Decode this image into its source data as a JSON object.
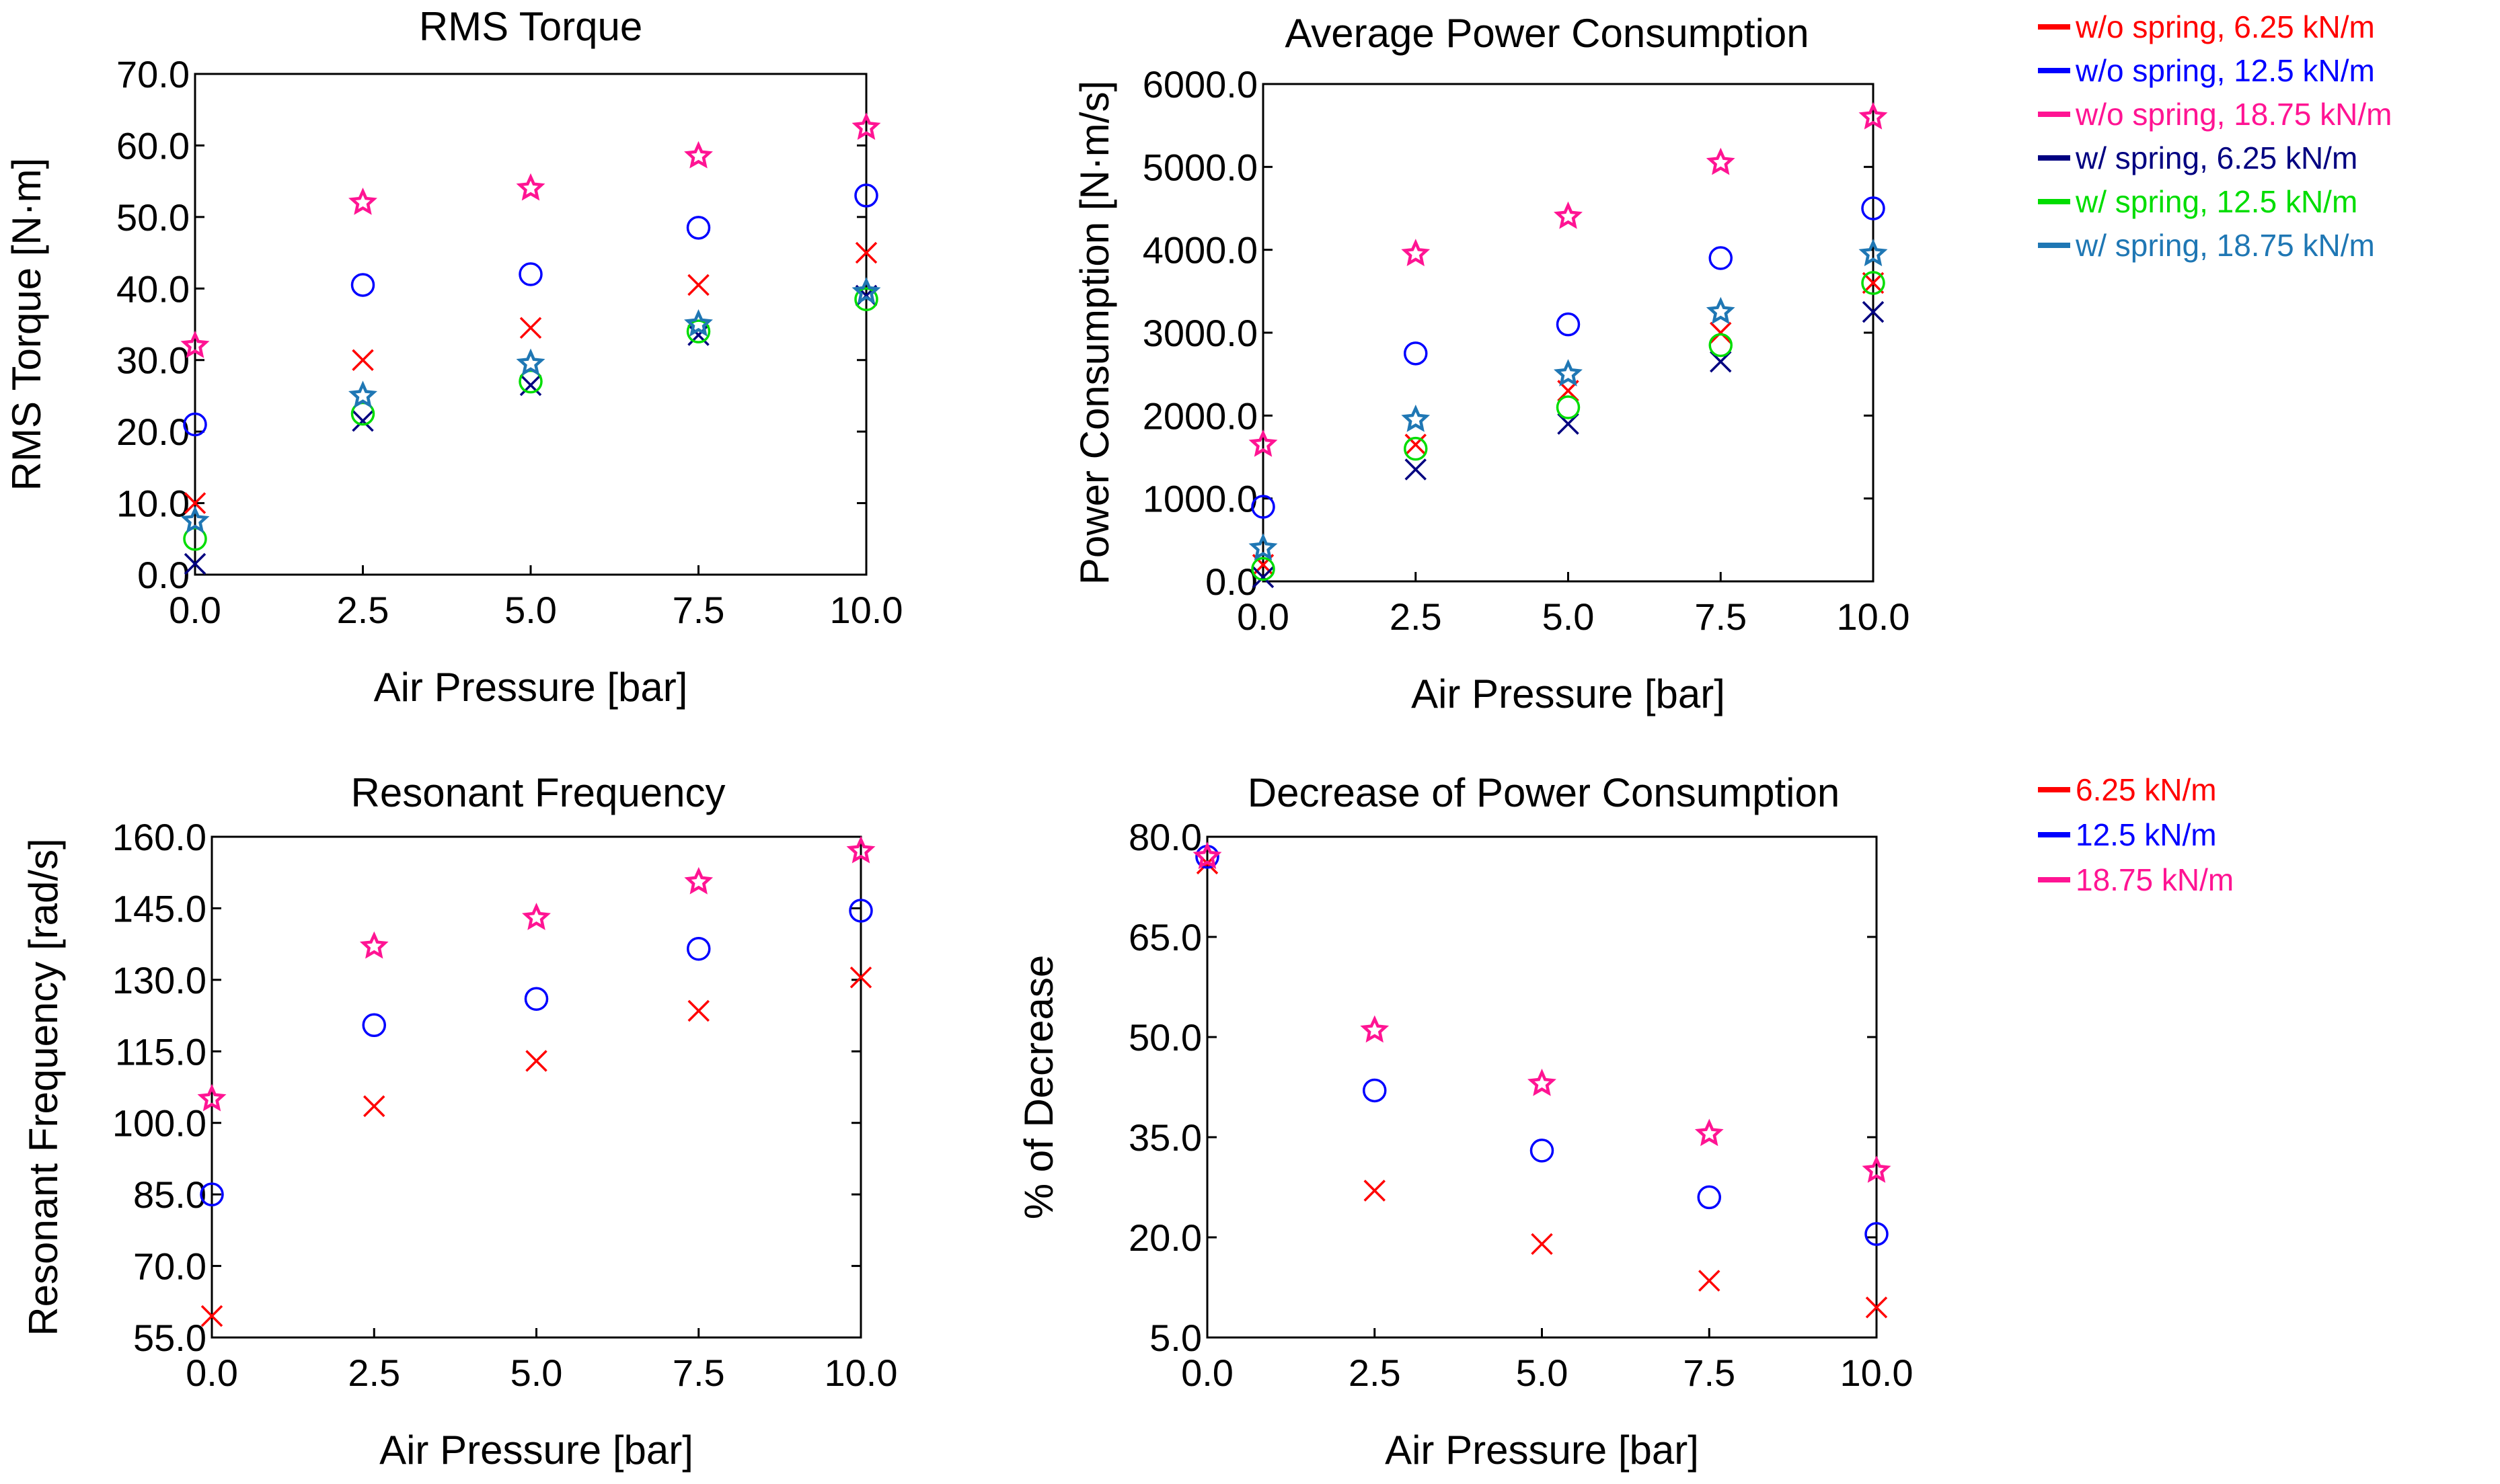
{
  "chart_data": [
    {
      "type": "scatter",
      "title": "RMS Torque",
      "xlabel": "Air Pressure [bar]",
      "ylabel": "RMS Torque [N·m]",
      "xlim": [
        0,
        10
      ],
      "ylim": [
        0,
        70
      ],
      "xticks": [
        "0.0",
        "2.5",
        "5.0",
        "7.5",
        "10.0"
      ],
      "yticks": [
        "0.0",
        "10.0",
        "20.0",
        "30.0",
        "40.0",
        "50.0",
        "60.0",
        "70.0"
      ],
      "x": [
        0,
        2.5,
        5,
        7.5,
        10
      ],
      "series": [
        {
          "name": "w/o spring, 6.25 kN/m",
          "marker": "x",
          "color": "#ff0000",
          "values": [
            10.0,
            30.0,
            34.5,
            40.5,
            45.0
          ]
        },
        {
          "name": "w/o spring, 12.5 kN/m",
          "marker": "circle",
          "color": "#0000ff",
          "values": [
            21.0,
            40.5,
            42.0,
            48.5,
            53.0
          ]
        },
        {
          "name": "w/o spring, 18.75 kN/m",
          "marker": "star",
          "color": "#ff1493",
          "values": [
            32.0,
            52.0,
            54.0,
            58.5,
            62.5
          ]
        },
        {
          "name": "w/ spring, 6.25 kN/m",
          "marker": "x",
          "color": "#000080",
          "values": [
            1.5,
            21.5,
            26.5,
            33.5,
            39.0
          ]
        },
        {
          "name": "w/ spring, 12.5 kN/m",
          "marker": "circle",
          "color": "#00dd00",
          "values": [
            5.0,
            22.5,
            27.0,
            34.0,
            38.5
          ]
        },
        {
          "name": "w/ spring, 18.75 kN/m",
          "marker": "star",
          "color": "#1f77b4",
          "values": [
            7.5,
            25.0,
            29.5,
            35.0,
            39.5
          ]
        }
      ]
    },
    {
      "type": "scatter",
      "title": "Average Power Consumption",
      "xlabel": "Air Pressure [bar]",
      "ylabel": "Power Consumption [N·m/s]",
      "xlim": [
        0,
        10
      ],
      "ylim": [
        0,
        6000
      ],
      "xticks": [
        "0.0",
        "2.5",
        "5.0",
        "7.5",
        "10.0"
      ],
      "yticks": [
        "0.0",
        "1000.0",
        "2000.0",
        "3000.0",
        "4000.0",
        "5000.0",
        "6000.0"
      ],
      "x": [
        0,
        2.5,
        5,
        7.5,
        10
      ],
      "series": [
        {
          "name": "w/o spring, 6.25 kN/m",
          "marker": "x",
          "color": "#ff0000",
          "values": [
            200,
            1650,
            2300,
            3000,
            3600
          ]
        },
        {
          "name": "w/o spring, 12.5 kN/m",
          "marker": "circle",
          "color": "#0000ff",
          "values": [
            900,
            2750,
            3100,
            3900,
            4500
          ]
        },
        {
          "name": "w/o spring, 18.75 kN/m",
          "marker": "star",
          "color": "#ff1493",
          "values": [
            1650,
            3950,
            4400,
            5050,
            5600
          ]
        },
        {
          "name": "w/ spring, 6.25 kN/m",
          "marker": "x",
          "color": "#000080",
          "values": [
            50,
            1350,
            1900,
            2650,
            3250
          ]
        },
        {
          "name": "w/ spring, 12.5 kN/m",
          "marker": "circle",
          "color": "#00dd00",
          "values": [
            150,
            1600,
            2100,
            2850,
            3600
          ]
        },
        {
          "name": "w/ spring, 18.75 kN/m",
          "marker": "star",
          "color": "#1f77b4",
          "values": [
            400,
            1950,
            2500,
            3250,
            3950
          ]
        }
      ]
    },
    {
      "type": "scatter",
      "title": "Resonant Frequency",
      "xlabel": "Air Pressure [bar]",
      "ylabel": "Resonant Frequency [rad/s]",
      "xlim": [
        0,
        10
      ],
      "ylim": [
        55,
        160
      ],
      "xticks": [
        "0.0",
        "2.5",
        "5.0",
        "7.5",
        "10.0"
      ],
      "yticks": [
        "55.0",
        "70.0",
        "85.0",
        "100.0",
        "115.0",
        "130.0",
        "145.0",
        "160.0"
      ],
      "x": [
        0,
        2.5,
        5,
        7.5,
        10
      ],
      "series": [
        {
          "name": "6.25 kN/m",
          "marker": "x",
          "color": "#ff0000",
          "values": [
            59.5,
            103.5,
            113.0,
            123.5,
            130.5
          ]
        },
        {
          "name": "12.5 kN/m",
          "marker": "circle",
          "color": "#0000ff",
          "values": [
            85.0,
            120.5,
            126.0,
            136.5,
            144.5
          ]
        },
        {
          "name": "18.75 kN/m",
          "marker": "star",
          "color": "#ff1493",
          "values": [
            105.0,
            137.0,
            143.0,
            150.5,
            157.0
          ]
        }
      ]
    },
    {
      "type": "scatter",
      "title": "Decrease of Power Consumption",
      "xlabel": "Air Pressure [bar]",
      "ylabel": "% of Decrease",
      "xlim": [
        0,
        10
      ],
      "ylim": [
        5,
        80
      ],
      "xticks": [
        "0.0",
        "2.5",
        "5.0",
        "7.5",
        "10.0"
      ],
      "yticks": [
        "5.0",
        "20.0",
        "35.0",
        "50.0",
        "65.0",
        "80.0"
      ],
      "x": [
        0,
        2.5,
        5,
        7.5,
        10
      ],
      "series": [
        {
          "name": "6.25 kN/m",
          "marker": "x",
          "color": "#ff0000",
          "values": [
            76.0,
            27.0,
            19.0,
            13.5,
            9.5
          ]
        },
        {
          "name": "12.5 kN/m",
          "marker": "circle",
          "color": "#0000ff",
          "values": [
            77.0,
            42.0,
            33.0,
            26.0,
            20.5
          ]
        },
        {
          "name": "18.75 kN/m",
          "marker": "star",
          "color": "#ff1493",
          "values": [
            77.0,
            51.0,
            43.0,
            35.5,
            30.0
          ]
        }
      ]
    }
  ],
  "legends": [
    {
      "entries": [
        {
          "label": "w/o spring, 6.25 kN/m",
          "color": "#ff0000"
        },
        {
          "label": "w/o spring, 12.5 kN/m",
          "color": "#0000ff"
        },
        {
          "label": "w/o spring, 18.75 kN/m",
          "color": "#ff1493"
        },
        {
          "label": "w/ spring, 6.25 kN/m",
          "color": "#000080"
        },
        {
          "label": "w/ spring, 12.5 kN/m",
          "color": "#00dd00"
        },
        {
          "label": "w/ spring, 18.75 kN/m",
          "color": "#1f77b4"
        }
      ]
    },
    {
      "entries": [
        {
          "label": "6.25 kN/m",
          "color": "#ff0000"
        },
        {
          "label": "12.5 kN/m",
          "color": "#0000ff"
        },
        {
          "label": "18.75 kN/m",
          "color": "#ff1493"
        }
      ]
    }
  ]
}
